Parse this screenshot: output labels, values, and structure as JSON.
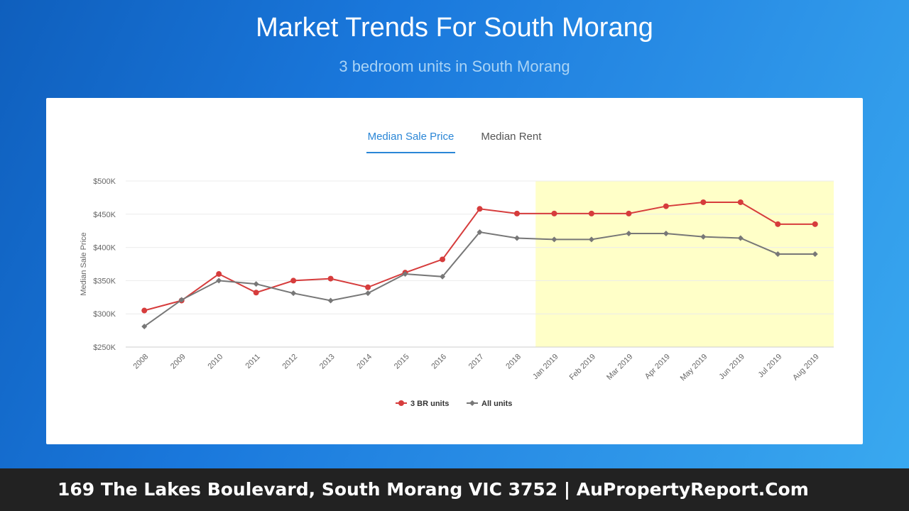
{
  "header": {
    "title": "Market Trends For South Morang",
    "subtitle": "3 bedroom units in South Morang"
  },
  "tabs": [
    {
      "label": "Median Sale Price",
      "active": true
    },
    {
      "label": "Median Rent",
      "active": false
    }
  ],
  "footer": {
    "text": "169 The Lakes Boulevard, South Morang VIC 3752 | AuPropertyReport.Com"
  },
  "colors": {
    "highlight": "#ffffc8",
    "series_3br": "#d63c3c",
    "series_all": "#777777",
    "tab_active": "#2a86d6"
  },
  "chart_data": {
    "type": "line",
    "title": "",
    "xlabel": "",
    "ylabel": "Median Sale Price",
    "ylim": [
      250000,
      500000
    ],
    "yticks": [
      250000,
      300000,
      350000,
      400000,
      450000,
      500000
    ],
    "ytick_labels": [
      "$250K",
      "$300K",
      "$350K",
      "$400K",
      "$450K",
      "$500K"
    ],
    "grid": true,
    "legend_position": "bottom",
    "highlight_range": [
      "Jan 2019",
      "Aug 2019"
    ],
    "categories": [
      "2008",
      "2009",
      "2010",
      "2011",
      "2012",
      "2013",
      "2014",
      "2015",
      "2016",
      "2017",
      "2018",
      "Jan 2019",
      "Feb 2019",
      "Mar 2019",
      "Apr 2019",
      "May 2019",
      "Jun 2019",
      "Jul 2019",
      "Aug 2019"
    ],
    "series": [
      {
        "name": "3 BR units",
        "values": [
          305000,
          320000,
          360000,
          332000,
          350000,
          353000,
          340000,
          362000,
          382000,
          458000,
          451000,
          451000,
          451000,
          451000,
          462000,
          468000,
          468000,
          435000,
          435000
        ]
      },
      {
        "name": "All units",
        "values": [
          281000,
          321000,
          350000,
          345000,
          331000,
          320000,
          331000,
          360000,
          356000,
          423000,
          414000,
          412000,
          412000,
          421000,
          421000,
          416000,
          414000,
          390000,
          390000
        ]
      }
    ]
  }
}
